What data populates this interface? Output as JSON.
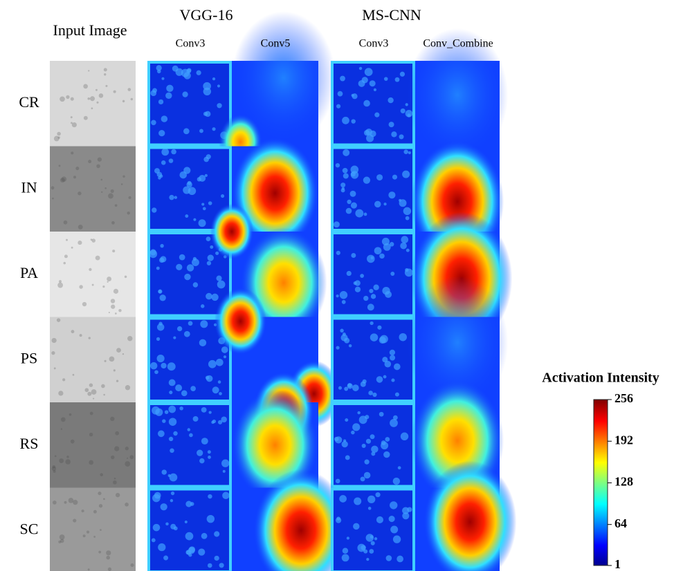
{
  "columns": {
    "input": "Input Image",
    "groups": [
      {
        "title": "VGG-16",
        "layers": [
          "Conv3",
          "Conv5"
        ]
      },
      {
        "title": "MS-CNN",
        "layers": [
          "Conv3",
          "Conv_Combine"
        ]
      }
    ]
  },
  "rows": [
    "CR",
    "IN",
    "PA",
    "PS",
    "RS",
    "SC"
  ],
  "colorbar": {
    "title": "Activation Intensity",
    "range": [
      1,
      256
    ],
    "ticks": [
      1,
      64,
      128,
      192,
      256
    ]
  }
}
